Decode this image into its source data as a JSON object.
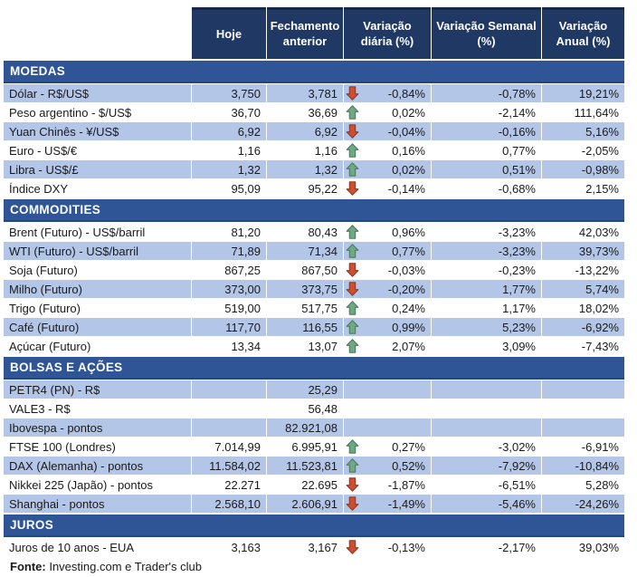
{
  "table": {
    "columns": [
      "Hoje",
      "Fechamento anterior",
      "Variação diária (%)",
      "Variação Semanal (%)",
      "Variação Anual (%)"
    ],
    "sections": [
      {
        "title": "MOEDAS",
        "rows": [
          {
            "cells": [
              "Dólar - R$/US$",
              "3,750",
              "3,781",
              "-0,84%",
              "-0,78%",
              "19,21%"
            ],
            "arrow": "down"
          },
          {
            "cells": [
              "Peso argentino - $/US$",
              "36,70",
              "36,69",
              "0,02%",
              "-2,14%",
              "111,64%"
            ],
            "arrow": "up"
          },
          {
            "cells": [
              "Yuan Chinês - ¥/US$",
              "6,92",
              "6,92",
              "-0,04%",
              "-0,16%",
              "5,16%"
            ],
            "arrow": "down"
          },
          {
            "cells": [
              "Euro - US$/€",
              "1,16",
              "1,16",
              "0,16%",
              "0,77%",
              "-2,05%"
            ],
            "arrow": "up"
          },
          {
            "cells": [
              "Libra - US$/£",
              "1,32",
              "1,32",
              "0,02%",
              "0,51%",
              "-0,98%"
            ],
            "arrow": "up"
          },
          {
            "cells": [
              "Índice DXY",
              "95,09",
              "95,22",
              "-0,14%",
              "-0,68%",
              "2,15%"
            ],
            "arrow": "down"
          }
        ]
      },
      {
        "title": "COMMODITIES",
        "rows": [
          {
            "cells": [
              "Brent (Futuro) - US$/barril",
              "81,20",
              "80,43",
              "0,96%",
              "-3,23%",
              "42,03%"
            ],
            "arrow": "up"
          },
          {
            "cells": [
              "WTI (Futuro) - US$/barril",
              "71,89",
              "71,34",
              "0,77%",
              "-3,23%",
              "39,73%"
            ],
            "arrow": "up"
          },
          {
            "cells": [
              "Soja (Futuro)",
              "867,25",
              "867,50",
              "-0,03%",
              "-0,23%",
              "-13,22%"
            ],
            "arrow": "down"
          },
          {
            "cells": [
              "Milho (Futuro)",
              "373,00",
              "373,75",
              "-0,20%",
              "1,77%",
              "5,74%"
            ],
            "arrow": "down"
          },
          {
            "cells": [
              "Trigo (Futuro)",
              "519,00",
              "517,75",
              "0,24%",
              "1,17%",
              "18,02%"
            ],
            "arrow": "up"
          },
          {
            "cells": [
              "Café (Futuro)",
              "117,70",
              "116,55",
              "0,99%",
              "5,23%",
              "-6,92%"
            ],
            "arrow": "up"
          },
          {
            "cells": [
              "Açúcar (Futuro)",
              "13,34",
              "13,07",
              "2,07%",
              "3,09%",
              "-7,43%"
            ],
            "arrow": "up"
          }
        ]
      },
      {
        "title": "BOLSAS E AÇÕES",
        "rows": [
          {
            "cells": [
              "PETR4 (PN) - R$",
              "",
              "25,29",
              "",
              "",
              ""
            ],
            "arrow": null
          },
          {
            "cells": [
              "VALE3 - R$",
              "",
              "56,48",
              "",
              "",
              ""
            ],
            "arrow": null
          },
          {
            "cells": [
              "Ibovespa - pontos",
              "",
              "82.921,08",
              "",
              "",
              ""
            ],
            "arrow": null
          },
          {
            "cells": [
              "FTSE 100 (Londres)",
              "7.014,99",
              "6.995,91",
              "0,27%",
              "-3,02%",
              "-6,91%"
            ],
            "arrow": "up"
          },
          {
            "cells": [
              "DAX (Alemanha) - pontos",
              "11.584,02",
              "11.523,81",
              "0,52%",
              "-7,92%",
              "-10,84%"
            ],
            "arrow": "up"
          },
          {
            "cells": [
              "Nikkei 225 (Japão) - pontos",
              "22.271",
              "22.695",
              "-1,87%",
              "-6,51%",
              "5,28%"
            ],
            "arrow": "down"
          },
          {
            "cells": [
              "Shanghai - pontos",
              "2.568,10",
              "2.606,91",
              "-1,49%",
              "-5,46%",
              "-24,26%"
            ],
            "arrow": "down"
          }
        ]
      },
      {
        "title": "JUROS",
        "rows": [
          {
            "cells": [
              "Juros de 10 anos - EUA",
              "3,163",
              "3,167",
              "-0,13%",
              "-2,17%",
              "39,03%"
            ],
            "arrow": "down"
          }
        ]
      }
    ]
  },
  "footer": {
    "label": "Fonte:",
    "text": " Investing.com e Trader's club"
  },
  "icons": {
    "up": "up-arrow-icon",
    "down": "down-arrow-icon"
  },
  "colors": {
    "header_bg": "#1F3864",
    "section_bg": "#2F5597",
    "row_shaded": "#B4C6E7",
    "arrow_up_fill": "#71A884",
    "arrow_up_stroke": "#4B7A60",
    "arrow_down_fill": "#CC4F33",
    "arrow_down_stroke": "#8E3A24",
    "text": "#1a1a1a"
  }
}
